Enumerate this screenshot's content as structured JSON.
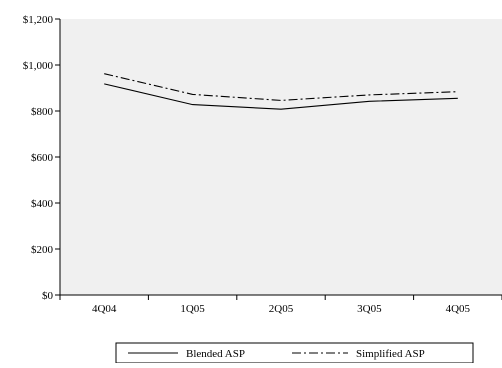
{
  "chart_data": {
    "type": "line",
    "categories": [
      "4Q04",
      "1Q05",
      "2Q05",
      "3Q05",
      "4Q05"
    ],
    "series": [
      {
        "name": "Blended ASP",
        "values": [
          918,
          828,
          808,
          842,
          855
        ],
        "style": "solid"
      },
      {
        "name": "Simplified ASP",
        "values": [
          962,
          872,
          846,
          870,
          884
        ],
        "style": "dash-dot"
      }
    ],
    "ylim": [
      0,
      1200
    ],
    "yticks": [
      0,
      200,
      400,
      600,
      800,
      1000,
      1200
    ],
    "ytick_labels": [
      "$0",
      "$200",
      "$400",
      "$600",
      "$800",
      "$1,000",
      "$1,200"
    ],
    "title": "",
    "xlabel": "",
    "ylabel": "",
    "grid": false,
    "legend_position": "bottom",
    "colors": {
      "plot_background": "#f0f0f0",
      "line": "#000000"
    }
  }
}
